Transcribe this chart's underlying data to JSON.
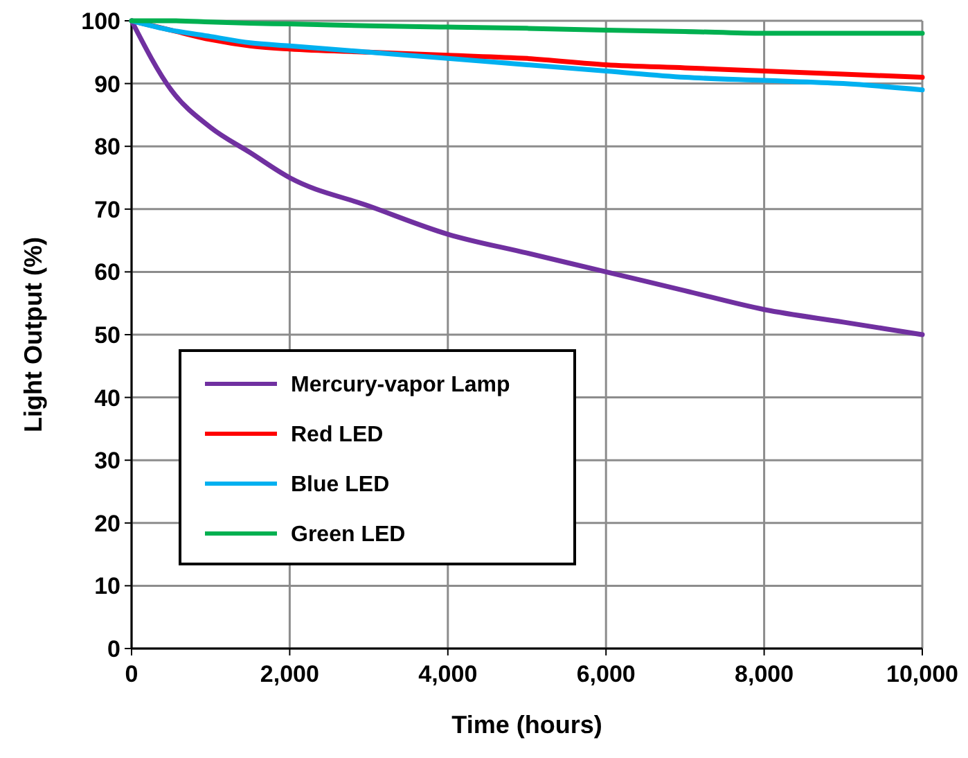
{
  "chart_data": {
    "type": "line",
    "xlabel": "Time (hours)",
    "ylabel": "Light Output (%)",
    "x": [
      0,
      500,
      1000,
      1500,
      2000,
      3000,
      4000,
      5000,
      6000,
      7000,
      8000,
      9000,
      10000
    ],
    "series": [
      {
        "name": "Mercury-vapor Lamp",
        "color": "#7030a0",
        "values": [
          100,
          89,
          83,
          79,
          75,
          70.5,
          66,
          63,
          60,
          57,
          54,
          52,
          50
        ]
      },
      {
        "name": "Red LED",
        "color": "#ff0000",
        "values": [
          100,
          98.5,
          97,
          96,
          95.5,
          95,
          94.5,
          94,
          93,
          92.5,
          92,
          91.5,
          91
        ]
      },
      {
        "name": "Blue LED",
        "color": "#00b0f0",
        "values": [
          100,
          98.5,
          97.5,
          96.5,
          96,
          95,
          94,
          93,
          92,
          91,
          90.5,
          90,
          89
        ]
      },
      {
        "name": "Green LED",
        "color": "#00b050",
        "values": [
          100,
          100,
          99.8,
          99.6,
          99.5,
          99.2,
          99,
          98.8,
          98.5,
          98.3,
          98,
          98,
          98
        ]
      }
    ],
    "xlim": [
      0,
      10000
    ],
    "xticks": [
      {
        "value": 0,
        "label": "0"
      },
      {
        "value": 2000,
        "label": "2,000"
      },
      {
        "value": 4000,
        "label": "4,000"
      },
      {
        "value": 6000,
        "label": "6,000"
      },
      {
        "value": 8000,
        "label": "8,000"
      },
      {
        "value": 10000,
        "label": "10,000"
      }
    ],
    "ylim": [
      0,
      100
    ],
    "yticks": [
      0,
      10,
      20,
      30,
      40,
      50,
      60,
      70,
      80,
      90,
      100
    ],
    "grid": true,
    "legend": "left",
    "marker": "none",
    "line_style": "solid"
  }
}
